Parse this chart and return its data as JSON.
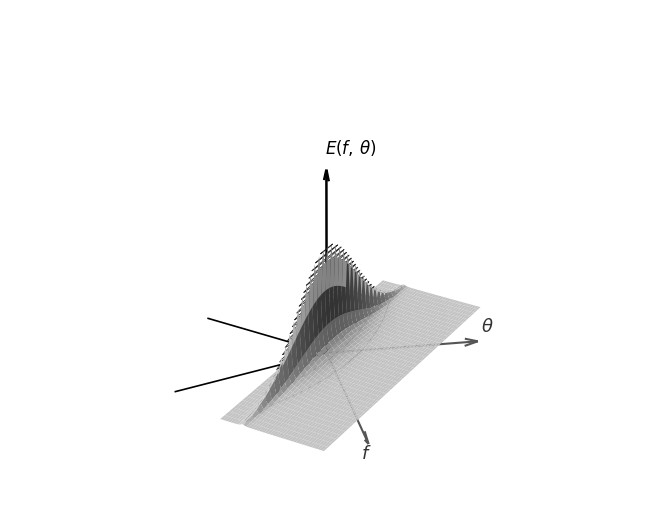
{
  "background_color": "#ffffff",
  "surface_cmap_low": 0.25,
  "surface_cmap_high": 0.72,
  "contour_color": "#1a1a1a",
  "n_contours": 22,
  "f_peak": 0.3,
  "gamma": 5.0,
  "sigma_a": 0.07,
  "sigma_b": 0.09,
  "s_spread": 6,
  "figsize": [
    6.57,
    5.12
  ],
  "dpi": 100,
  "elev": 28,
  "azim": -60,
  "xlim": [
    -1.2,
    2.0
  ],
  "ylim": [
    -1.5,
    1.5
  ],
  "zlim": [
    0,
    2.0
  ]
}
